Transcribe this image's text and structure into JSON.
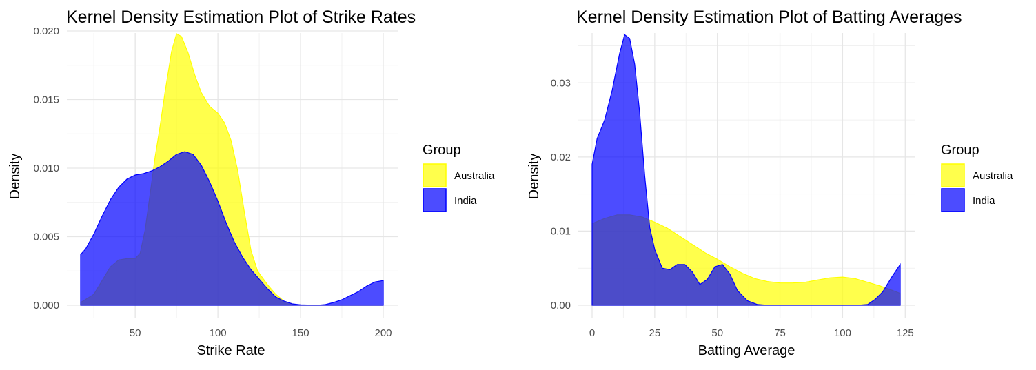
{
  "chart_data": [
    {
      "type": "area",
      "title": "Kernel Density Estimation Plot of Strike Rates",
      "xlabel": "Strike Rate",
      "ylabel": "Density",
      "xlim": [
        17,
        200
      ],
      "ylim": [
        0,
        0.02
      ],
      "x_ticks": [
        50,
        100,
        150,
        200
      ],
      "y_ticks": [
        0.0,
        0.005,
        0.01,
        0.015,
        0.02
      ],
      "x_tick_labels": [
        "50",
        "100",
        "150",
        "200"
      ],
      "y_tick_labels": [
        "0.000",
        "0.005",
        "0.010",
        "0.015",
        "0.020"
      ],
      "grid": true,
      "legend": {
        "title": "Group",
        "position": "right"
      },
      "series": [
        {
          "name": "Australia",
          "color": "#ffff00",
          "points": [
            [
              17,
              0.0002
            ],
            [
              25,
              0.0008
            ],
            [
              30,
              0.0018
            ],
            [
              35,
              0.0028
            ],
            [
              40,
              0.0033
            ],
            [
              45,
              0.0034
            ],
            [
              50,
              0.0034
            ],
            [
              53,
              0.0038
            ],
            [
              56,
              0.0055
            ],
            [
              60,
              0.009
            ],
            [
              62,
              0.0108
            ],
            [
              65,
              0.013
            ],
            [
              68,
              0.0155
            ],
            [
              72,
              0.0185
            ],
            [
              75,
              0.0198
            ],
            [
              78,
              0.0196
            ],
            [
              82,
              0.0184
            ],
            [
              86,
              0.0168
            ],
            [
              90,
              0.0155
            ],
            [
              95,
              0.0145
            ],
            [
              100,
              0.014
            ],
            [
              104,
              0.0133
            ],
            [
              108,
              0.012
            ],
            [
              112,
              0.0098
            ],
            [
              116,
              0.0068
            ],
            [
              120,
              0.004
            ],
            [
              124,
              0.0025
            ],
            [
              130,
              0.0015
            ],
            [
              135,
              0.0008
            ],
            [
              140,
              0.0003
            ],
            [
              145,
              0.0001
            ],
            [
              150,
              0
            ],
            [
              200,
              0
            ]
          ]
        },
        {
          "name": "India",
          "color": "#0000ff",
          "points": [
            [
              17,
              0.0037
            ],
            [
              20,
              0.0041
            ],
            [
              25,
              0.0052
            ],
            [
              30,
              0.0065
            ],
            [
              35,
              0.0077
            ],
            [
              40,
              0.0086
            ],
            [
              45,
              0.0092
            ],
            [
              50,
              0.0095
            ],
            [
              55,
              0.0096
            ],
            [
              60,
              0.0098
            ],
            [
              65,
              0.0101
            ],
            [
              70,
              0.0105
            ],
            [
              75,
              0.011
            ],
            [
              80,
              0.0112
            ],
            [
              85,
              0.011
            ],
            [
              90,
              0.0102
            ],
            [
              95,
              0.009
            ],
            [
              100,
              0.0076
            ],
            [
              105,
              0.006
            ],
            [
              110,
              0.0046
            ],
            [
              115,
              0.0035
            ],
            [
              120,
              0.0026
            ],
            [
              125,
              0.0019
            ],
            [
              130,
              0.0012
            ],
            [
              135,
              0.0006
            ],
            [
              140,
              0.0003
            ],
            [
              145,
              0.0001
            ],
            [
              150,
              3e-05
            ],
            [
              160,
              0
            ],
            [
              165,
              5e-05
            ],
            [
              170,
              0.0002
            ],
            [
              175,
              0.0004
            ],
            [
              180,
              0.0007
            ],
            [
              185,
              0.001
            ],
            [
              190,
              0.0014
            ],
            [
              195,
              0.0017
            ],
            [
              200,
              0.0018
            ]
          ]
        }
      ]
    },
    {
      "type": "area",
      "title": "Kernel Density Estimation Plot of Batting Averages",
      "xlabel": "Batting Average",
      "ylabel": "Density",
      "xlim": [
        0,
        123
      ],
      "ylim": [
        0,
        0.037
      ],
      "x_ticks": [
        0,
        25,
        50,
        75,
        100,
        125
      ],
      "y_ticks": [
        0.0,
        0.01,
        0.02,
        0.03
      ],
      "x_tick_labels": [
        "0",
        "25",
        "50",
        "75",
        "100",
        "125"
      ],
      "y_tick_labels": [
        "0.00",
        "0.01",
        "0.02",
        "0.03"
      ],
      "grid": true,
      "legend": {
        "title": "Group",
        "position": "right"
      },
      "series": [
        {
          "name": "Australia",
          "color": "#ffff00",
          "points": [
            [
              0,
              0.011
            ],
            [
              5,
              0.0117
            ],
            [
              10,
              0.0122
            ],
            [
              15,
              0.0122
            ],
            [
              20,
              0.0119
            ],
            [
              25,
              0.0112
            ],
            [
              30,
              0.0104
            ],
            [
              35,
              0.0093
            ],
            [
              40,
              0.0082
            ],
            [
              45,
              0.0071
            ],
            [
              50,
              0.0062
            ],
            [
              55,
              0.0052
            ],
            [
              60,
              0.0043
            ],
            [
              65,
              0.0036
            ],
            [
              70,
              0.0032
            ],
            [
              75,
              0.003
            ],
            [
              80,
              0.003
            ],
            [
              85,
              0.0031
            ],
            [
              90,
              0.0034
            ],
            [
              95,
              0.0037
            ],
            [
              100,
              0.0038
            ],
            [
              105,
              0.0036
            ],
            [
              110,
              0.0031
            ],
            [
              115,
              0.0026
            ],
            [
              120,
              0.002
            ],
            [
              123,
              0.0016
            ]
          ]
        },
        {
          "name": "India",
          "color": "#0000ff",
          "points": [
            [
              0,
              0.019
            ],
            [
              2,
              0.0225
            ],
            [
              5,
              0.025
            ],
            [
              8,
              0.029
            ],
            [
              11,
              0.034
            ],
            [
              13,
              0.0365
            ],
            [
              15,
              0.036
            ],
            [
              17,
              0.0325
            ],
            [
              19,
              0.026
            ],
            [
              21,
              0.0175
            ],
            [
              23,
              0.0105
            ],
            [
              25,
              0.0075
            ],
            [
              28,
              0.005
            ],
            [
              31,
              0.0048
            ],
            [
              34,
              0.0055
            ],
            [
              37,
              0.0055
            ],
            [
              40,
              0.0045
            ],
            [
              43,
              0.0028
            ],
            [
              46,
              0.0035
            ],
            [
              49,
              0.0052
            ],
            [
              52,
              0.0055
            ],
            [
              55,
              0.0042
            ],
            [
              58,
              0.002
            ],
            [
              62,
              0.0006
            ],
            [
              66,
              0.0001
            ],
            [
              70,
              0
            ],
            [
              106,
              0
            ],
            [
              110,
              0.0001
            ],
            [
              113,
              0.0008
            ],
            [
              116,
              0.0018
            ],
            [
              120,
              0.004
            ],
            [
              123,
              0.0055
            ]
          ]
        }
      ]
    }
  ]
}
